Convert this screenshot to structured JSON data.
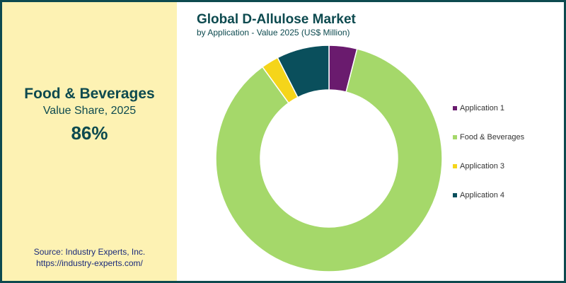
{
  "chart_data": {
    "type": "donut",
    "title": "Global D-Allulose Market",
    "subtitle": "by Application - Value 2025 (US$ Million)",
    "categories": [
      "Application 1",
      "Food & Beverages",
      "Application 3",
      "Application 4"
    ],
    "values": [
      4,
      86,
      2.5,
      7.5
    ],
    "colors": [
      "#6a1b6e",
      "#a5d86a",
      "#f5d51a",
      "#0a4f5c"
    ],
    "highlight": {
      "title": "Food & Beverages",
      "subtitle": "Value Share, 2025",
      "value": "86%"
    },
    "source": [
      "Source: Industry Experts, Inc.",
      "https://industry-experts.com/"
    ]
  }
}
